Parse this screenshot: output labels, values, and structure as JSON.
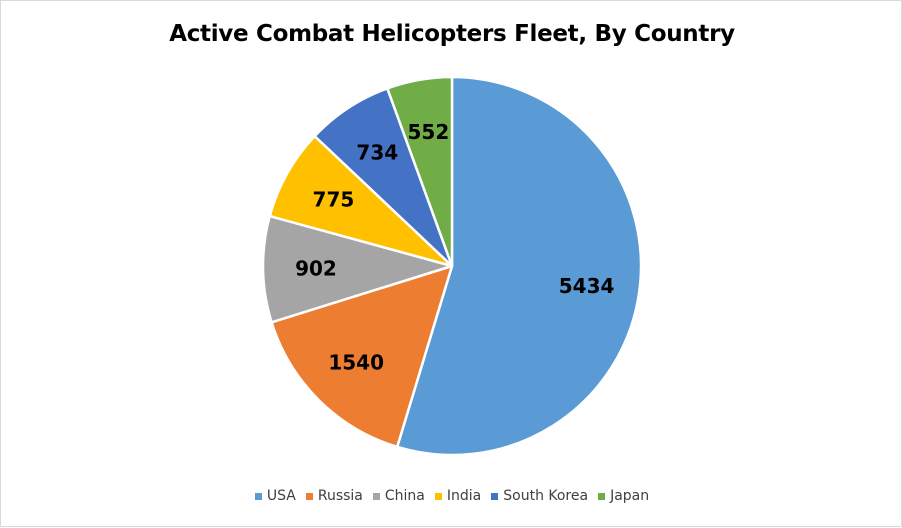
{
  "chart_data": {
    "type": "pie",
    "title": "Active Combat Helicopters Fleet, By Country",
    "categories": [
      "USA",
      "Russia",
      "China",
      "India",
      "South Korea",
      "Japan"
    ],
    "values": [
      5434,
      1540,
      902,
      775,
      734,
      552
    ],
    "colors": [
      "#5b9bd5",
      "#ed7d31",
      "#a5a5a5",
      "#ffc000",
      "#4472c4",
      "#70ad47"
    ],
    "legend_position": "bottom",
    "data_labels": true
  }
}
